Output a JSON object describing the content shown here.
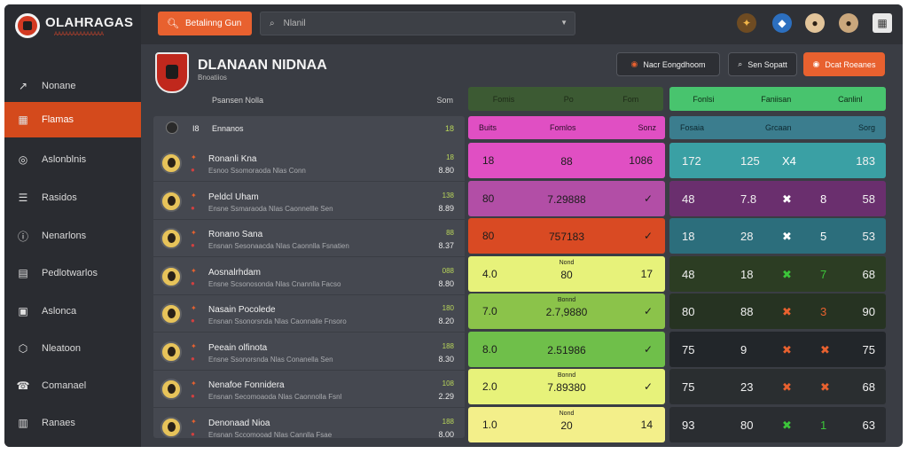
{
  "app": {
    "logo_text": "OLAHRAGAS",
    "logo_tagline": "AAAAAAAAAAAAAA"
  },
  "topbar": {
    "action_label": "Betalinng Gun",
    "search_placeholder": "Nlanil"
  },
  "sidebar": {
    "items": [
      {
        "label": "Nonane",
        "icon": "chart-line-icon"
      },
      {
        "label": "Flamas",
        "icon": "table-icon",
        "active": true
      },
      {
        "label": "Aslonblnis",
        "icon": "globe-icon"
      },
      {
        "label": "Rasidos",
        "icon": "list-icon"
      },
      {
        "label": "Nenarlons",
        "icon": "info-icon"
      },
      {
        "label": "Pedlotwarlos",
        "icon": "document-icon"
      },
      {
        "label": "Aslonca",
        "icon": "calendar-icon"
      },
      {
        "label": "Nleatoon",
        "icon": "cube-icon"
      },
      {
        "label": "Comanael",
        "icon": "phone-icon"
      },
      {
        "label": "Ranaes",
        "icon": "folder-icon"
      }
    ]
  },
  "header": {
    "title": "DLANAAN NIDNAA",
    "subtitle": "Bnoatiios",
    "btn1": "Nacr Eongdhoom",
    "btn2": "Sen Sopatt",
    "btn3": "Dcat Roeanes"
  },
  "columns": {
    "left": {
      "a": "Psansen Nolla",
      "b": "Som"
    },
    "mid": [
      "Fomis",
      "Po",
      "Fom"
    ],
    "right": [
      "Fonlsi",
      "Faniisan",
      "Canlinl"
    ]
  },
  "left_table": {
    "head": {
      "a": "I8",
      "b": "Ennanos",
      "c": "18"
    },
    "rows": [
      {
        "name": "Ronanli Kna",
        "desc": "Esnoo Ssomoraoda Nlas Conn",
        "v1": "18",
        "v2": "8.80"
      },
      {
        "name": "Peldcl Uham",
        "desc": "Ensne Ssmaraoda Nlas Caonnellle Sen",
        "v1": "138",
        "v2": "8.89"
      },
      {
        "name": "Ronano Sana",
        "desc": "Ensnan Sesonaacda Nlas Caonnlla Fsnatien",
        "v1": "88",
        "v2": "8.37"
      },
      {
        "name": "Aosnalrhdam",
        "desc": "Ensne Scsonosonda Nlas Cnannlla Facso",
        "v1": "088",
        "v2": "8.80"
      },
      {
        "name": "Nasain Pocolede",
        "desc": "Ensnan Ssonorsnda Nlas Caonnalle Fnsoro",
        "v1": "180",
        "v2": "8.20"
      },
      {
        "name": "Peeain olfinota",
        "desc": "Ensne Ssonorsnda Nlas Conanella Sen",
        "v1": "188",
        "v2": "8.30"
      },
      {
        "name": "Nenafoe Fonnidera",
        "desc": "Ensnan Secomoaoda Nlas Caonnolla Fsnl",
        "v1": "108",
        "v2": "2.29"
      },
      {
        "name": "Denonaad Nioa",
        "desc": "Ensnan Sccomooad Nlas Cannlla Fsae",
        "v1": "188",
        "v2": "8.00"
      }
    ]
  },
  "mid_table": {
    "head": [
      "Buits",
      "Fomlos",
      "Sonz"
    ],
    "rows": [
      {
        "c1": "18",
        "c2": "88",
        "c3": "1086",
        "sub": "",
        "color": "#e04fc3"
      },
      {
        "c1": "80",
        "c2": "7.29888",
        "c3": "✓",
        "sub": "",
        "color": "#b24ea6"
      },
      {
        "c1": "80",
        "c2": "757183",
        "c3": "✓",
        "sub": "",
        "color": "#d94a23"
      },
      {
        "c1": "4.0",
        "c2": "80",
        "c3": "17",
        "sub": "Nond",
        "color": "#e7f27a"
      },
      {
        "c1": "7.0",
        "c2": "2.7,9880",
        "c3": "✓",
        "sub": "Bonnd",
        "color": "#8bc34a"
      },
      {
        "c1": "8.0",
        "c2": "2.51986",
        "c3": "✓",
        "sub": "",
        "color": "#6fbf4a"
      },
      {
        "c1": "2.0",
        "c2": "7.89380",
        "c3": "✓",
        "sub": "Bonnd",
        "color": "#e7f27a"
      },
      {
        "c1": "1.0",
        "c2": "20",
        "c3": "14",
        "sub": "Nond",
        "color": "#f3ef8a"
      }
    ]
  },
  "right_table": {
    "head": [
      "Fosaia",
      "Grcaan",
      "Sorg"
    ],
    "rows": [
      {
        "a": "172",
        "b": "125",
        "c": "X4",
        "d": "",
        "e": "183",
        "color": "#3aa0a4",
        "mark": "#ffffff"
      },
      {
        "a": "48",
        "b": "7.8",
        "c": "✖",
        "d": "8",
        "e": "58",
        "color": "#6a2f6e",
        "mark": "#ffffff"
      },
      {
        "a": "18",
        "b": "28",
        "c": "✖",
        "d": "5",
        "e": "53",
        "color": "#2c6e7c",
        "mark": "#ffffff"
      },
      {
        "a": "48",
        "b": "18",
        "c": "✖",
        "d": "7",
        "e": "68",
        "color": "#2c3d23",
        "mark": "#3cc53a"
      },
      {
        "a": "80",
        "b": "88",
        "c": "✖",
        "d": "3",
        "e": "90",
        "color": "#263322",
        "mark": "#e8612f"
      },
      {
        "a": "75",
        "b": "9",
        "c": "✖",
        "d": "✖",
        "e": "75",
        "color": "#22262a",
        "mark": "#e8612f"
      },
      {
        "a": "75",
        "b": "23",
        "c": "✖",
        "d": "✖",
        "e": "68",
        "color": "#2a2e30",
        "mark": "#e8612f"
      },
      {
        "a": "93",
        "b": "80",
        "c": "✖",
        "d": "1",
        "e": "63",
        "color": "#2a2d31",
        "mark": "#3cc53a"
      }
    ]
  }
}
